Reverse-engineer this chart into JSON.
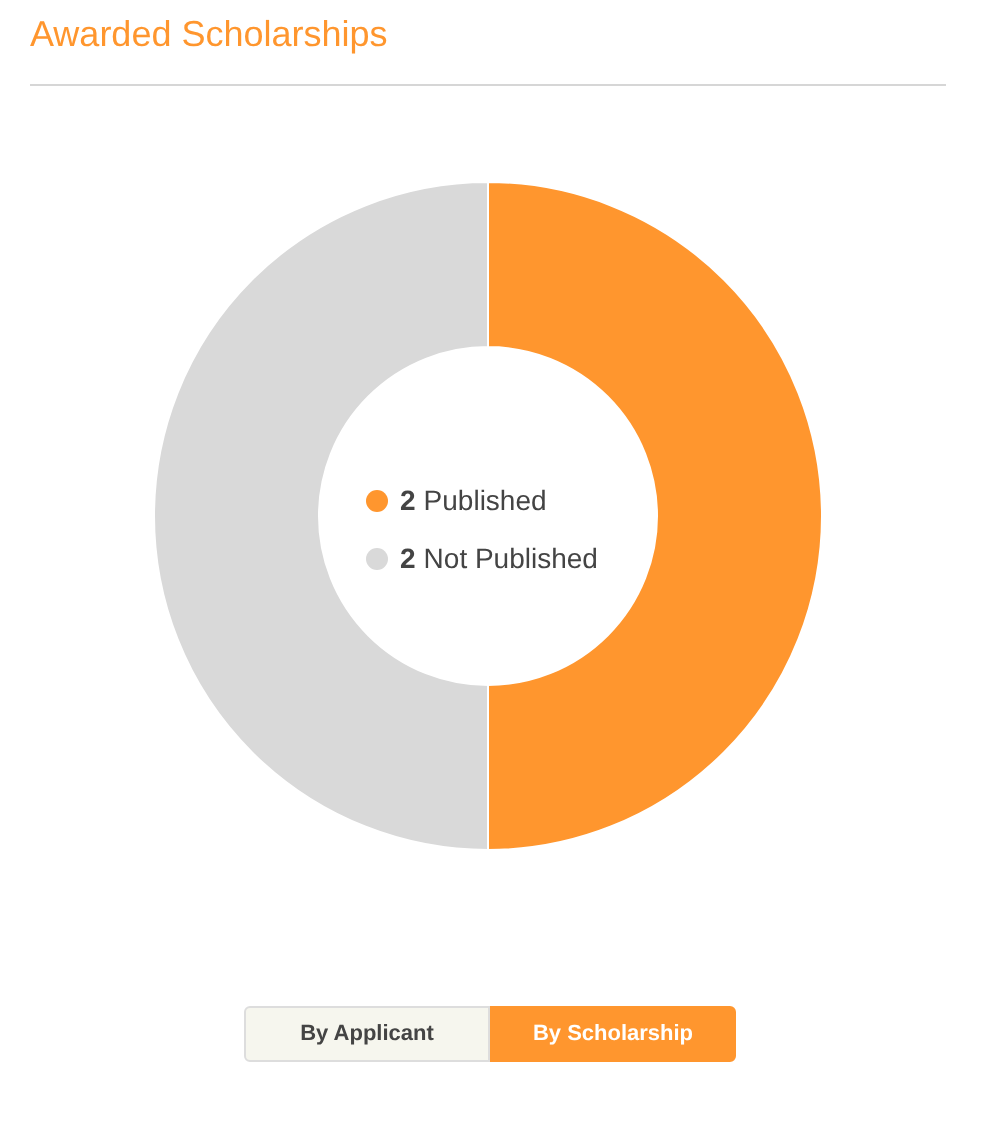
{
  "chart_data": {
    "type": "donut",
    "title": "Awarded Scholarships",
    "categories": [
      "Published",
      "Not Published"
    ],
    "values": [
      2,
      2
    ],
    "colors": [
      "#ff962e",
      "#d9d9d9"
    ],
    "legend": "center",
    "data_labels": true,
    "annotations": [
      "By Applicant",
      "By Scholarship"
    ]
  }
}
